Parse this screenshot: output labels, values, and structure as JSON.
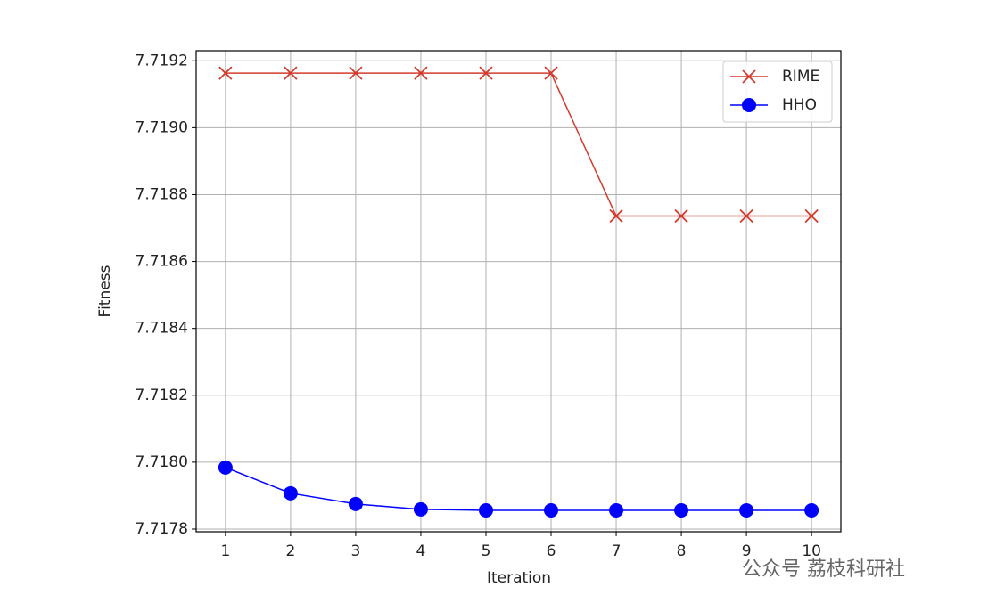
{
  "chart_data": {
    "type": "line",
    "xlabel": "Iteration",
    "ylabel": "Fitness",
    "x": [
      1,
      2,
      3,
      4,
      5,
      6,
      7,
      8,
      9,
      10
    ],
    "series": [
      {
        "name": "RIME",
        "color": "#d33a2c",
        "marker": "x",
        "values": [
          7.719163,
          7.719163,
          7.719163,
          7.719163,
          7.719163,
          7.719163,
          7.718736,
          7.718736,
          7.718736,
          7.718736
        ]
      },
      {
        "name": "HHO",
        "color": "#0000ff",
        "marker": "o",
        "values": [
          7.717984,
          7.717907,
          7.717875,
          7.717859,
          7.717856,
          7.717856,
          7.717856,
          7.717856,
          7.717856,
          7.717856
        ]
      }
    ],
    "xlim": [
      0.55,
      10.45
    ],
    "xticks": [
      1,
      2,
      3,
      4,
      5,
      6,
      7,
      8,
      9,
      10
    ],
    "ylim": [
      7.717792,
      7.71923
    ],
    "yticks": [
      {
        "value": 7.7178,
        "label": "7.7178"
      },
      {
        "value": 7.718,
        "label": "7.7180"
      },
      {
        "value": 7.7182,
        "label": "7.7182"
      },
      {
        "value": 7.7184,
        "label": "7.7184"
      },
      {
        "value": 7.7186,
        "label": "7.7186"
      },
      {
        "value": 7.7188,
        "label": "7.7188"
      },
      {
        "value": 7.719,
        "label": "7.7190"
      },
      {
        "value": 7.7192,
        "label": "7.7192"
      }
    ],
    "grid": true,
    "legend": "upper right",
    "watermark": "公众号 荔枝科研社"
  }
}
